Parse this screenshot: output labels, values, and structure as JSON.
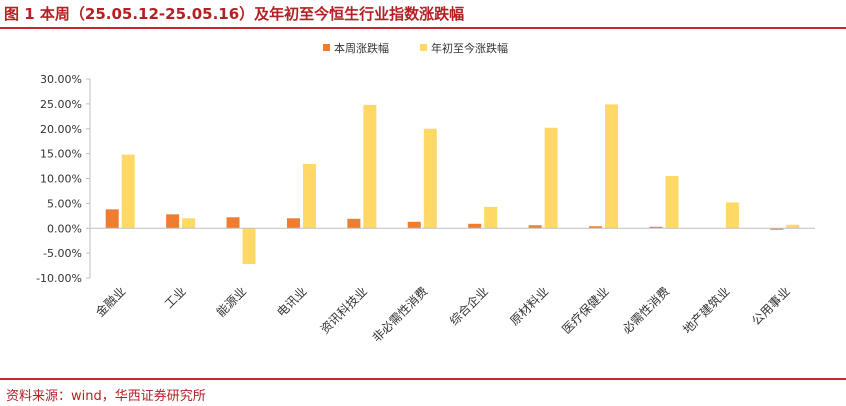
{
  "header": {
    "title": "图 1  本周（25.05.12-25.05.16）及年初至今恒生行业指数涨跌幅"
  },
  "footer": {
    "source": "资料来源：wind，华西证券研究所"
  },
  "colors": {
    "series1": "#ee7d31",
    "series2": "#ffd866",
    "accent": "#c0282d"
  },
  "chart_data": {
    "type": "bar",
    "categories": [
      "金融业",
      "工业",
      "能源业",
      "电讯业",
      "资讯科技业",
      "非必需性消费",
      "综合企业",
      "原材料业",
      "医疗保健业",
      "必需性消费",
      "地产建筑业",
      "公用事业"
    ],
    "series": [
      {
        "name": "本周涨跌幅",
        "values": [
          3.8,
          2.8,
          2.2,
          2.0,
          1.9,
          1.3,
          0.9,
          0.6,
          0.4,
          0.3,
          0.0,
          -0.3
        ]
      },
      {
        "name": "年初至今涨跌幅",
        "values": [
          14.8,
          2.0,
          -7.2,
          12.9,
          24.8,
          20.0,
          4.3,
          20.2,
          24.9,
          10.5,
          5.2,
          0.7
        ]
      }
    ],
    "ylim": [
      -10,
      30
    ],
    "yticks": [
      "-10.00%",
      "-5.00%",
      "0.00%",
      "5.00%",
      "10.00%",
      "15.00%",
      "20.00%",
      "25.00%",
      "30.00%"
    ],
    "legend_position": "top-center",
    "grid": false
  }
}
